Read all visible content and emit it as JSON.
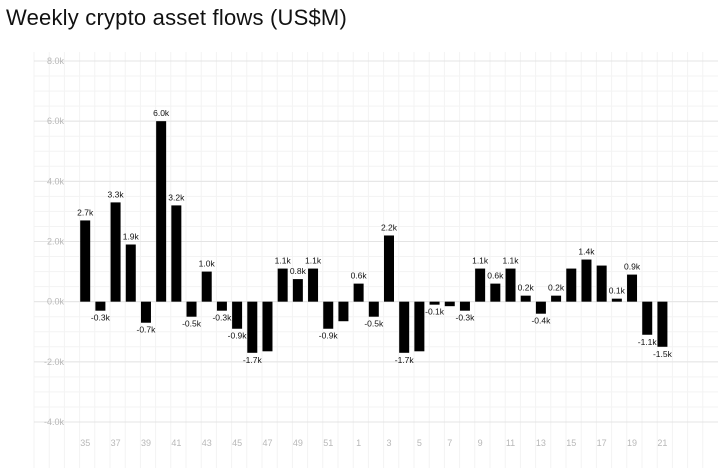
{
  "chart_data": {
    "type": "bar",
    "title": "Weekly crypto asset flows (US$M)",
    "xlabel": "",
    "ylabel": "",
    "ylim": [
      -4000,
      8000
    ],
    "yticks": [
      {
        "value": 8000,
        "label": "8.0k"
      },
      {
        "value": 6000,
        "label": "6.0k"
      },
      {
        "value": 4000,
        "label": "4.0k"
      },
      {
        "value": 2000,
        "label": "2.0k"
      },
      {
        "value": 0,
        "label": "0.0k"
      },
      {
        "value": -2000,
        "label": "-2.0k"
      },
      {
        "value": -4000,
        "label": "-4.0k"
      }
    ],
    "xtick_labels": [
      "35",
      "37",
      "39",
      "41",
      "43",
      "45",
      "47",
      "49",
      "51",
      "1",
      "3",
      "5",
      "7",
      "9",
      "11",
      "13",
      "15",
      "17",
      "19",
      "21"
    ],
    "grid": true,
    "legend": "none",
    "bar_color": "#000000",
    "categories": [
      "35",
      "36",
      "37",
      "38",
      "39",
      "40",
      "41",
      "42",
      "43",
      "44",
      "45",
      "46",
      "47",
      "48",
      "49",
      "50",
      "51",
      "52",
      "1",
      "2",
      "3",
      "4",
      "5",
      "6",
      "7",
      "8",
      "9",
      "10",
      "11",
      "12",
      "13",
      "14",
      "15",
      "16",
      "17",
      "18",
      "19",
      "20",
      "21"
    ],
    "values": [
      2700,
      -300,
      3300,
      1900,
      -700,
      6000,
      3200,
      -500,
      1000,
      -300,
      -900,
      -1700,
      -1650,
      1100,
      750,
      1100,
      -900,
      -650,
      600,
      -500,
      2200,
      -1700,
      -1650,
      -100,
      -150,
      -300,
      1100,
      600,
      1100,
      200,
      -400,
      200,
      1100,
      1400,
      1200,
      100,
      900,
      -1100,
      -1500
    ],
    "data_labels": [
      "2.7k",
      "-0.3k",
      "3.3k",
      "1.9k",
      "-0.7k",
      "6.0k",
      "3.2k",
      "-0.5k",
      "1.0k",
      "-0.3k",
      "-0.9k",
      "-1.7k",
      "",
      "1.1k",
      "0.8k",
      "1.1k",
      "-0.9k",
      "",
      "0.6k",
      "-0.5k",
      "2.2k",
      "-1.7k",
      "",
      "-0.1k",
      "",
      "-0.3k",
      "1.1k",
      "0.6k",
      "1.1k",
      "0.2k",
      "-0.4k",
      "0.2k",
      "",
      "1.4k",
      "",
      "0.1k",
      "0.9k",
      "-1.1k",
      "-1.5k"
    ]
  }
}
